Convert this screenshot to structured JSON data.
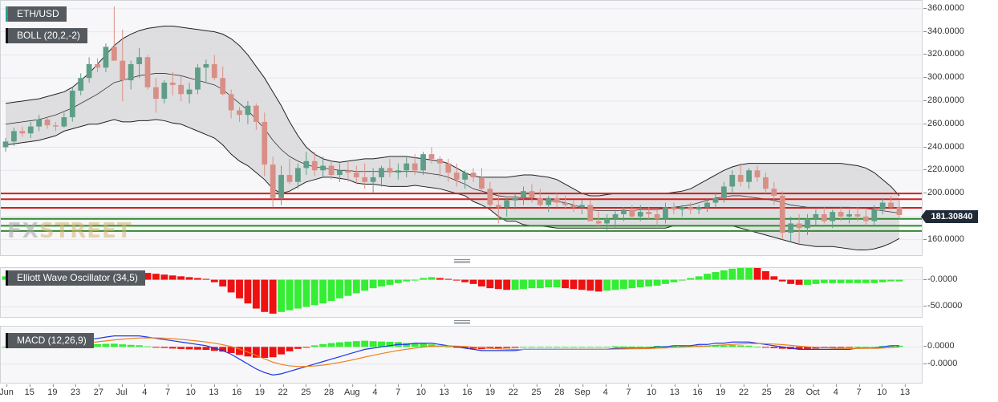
{
  "symbol": "ETH/USD",
  "indicators": {
    "boll": "BOLL (20,2,-2)",
    "ewo": "Elliott Wave Oscillator (34,5)",
    "macd": "MACD (12,26,9)"
  },
  "current_price": "181.30840",
  "watermark": {
    "fx": "FX",
    "street": "STREET"
  },
  "price_axis_labels": [
    "360.0000",
    "340.0000",
    "320.0000",
    "300.0000",
    "280.0000",
    "260.0000",
    "240.0000",
    "220.0000",
    "200.0000",
    "180.0000",
    "160.0000"
  ],
  "ewo_axis_labels": [
    "-0.0000",
    "-50.0000"
  ],
  "macd_axis_labels": [
    "0.0000",
    "-0.0000"
  ],
  "x_axis_labels": [
    "Jun",
    "15",
    "19",
    "23",
    "27",
    "Jul",
    "4",
    "7",
    "10",
    "13",
    "16",
    "19",
    "22",
    "25",
    "28",
    "Aug",
    "4",
    "7",
    "10",
    "13",
    "16",
    "19",
    "22",
    "25",
    "28",
    "Sep",
    "4",
    "7",
    "10",
    "13",
    "16",
    "19",
    "22",
    "25",
    "28",
    "Oct",
    "4",
    "7",
    "10",
    "13"
  ],
  "colors": {
    "bull": "#5e9e86",
    "bear": "#d98f86",
    "band_fill": "#d9d9dc",
    "support_line": "#2f8a2f",
    "resistance_line": "#d21f1f",
    "ewo_up": "#33ee33",
    "ewo_down": "#ee1111",
    "macd_line": "#1c36e8",
    "signal_line": "#f07f1a"
  },
  "chart_data": {
    "type": "candlestick",
    "ylim": [
      150,
      362
    ],
    "resistance_levels": [
      200,
      195,
      187.5
    ],
    "support_levels": [
      178,
      172,
      167.5
    ],
    "candles": [
      [
        240,
        248,
        236,
        245
      ],
      [
        245,
        257,
        241,
        254
      ],
      [
        254,
        258,
        249,
        252
      ],
      [
        252,
        262,
        248,
        258
      ],
      [
        258,
        268,
        254,
        264
      ],
      [
        264,
        266,
        256,
        259
      ],
      [
        259,
        262,
        254,
        258
      ],
      [
        258,
        270,
        257,
        266
      ],
      [
        266,
        292,
        262,
        289
      ],
      [
        289,
        304,
        285,
        300
      ],
      [
        300,
        318,
        296,
        312
      ],
      [
        312,
        317,
        305,
        309
      ],
      [
        309,
        330,
        305,
        327
      ],
      [
        327,
        362,
        315,
        315
      ],
      [
        315,
        342,
        280,
        298
      ],
      [
        298,
        315,
        290,
        312
      ],
      [
        312,
        326,
        300,
        318
      ],
      [
        318,
        320,
        290,
        292
      ],
      [
        292,
        300,
        270,
        282
      ],
      [
        282,
        298,
        278,
        296
      ],
      [
        296,
        305,
        285,
        294
      ],
      [
        294,
        302,
        280,
        286
      ],
      [
        286,
        296,
        278,
        290
      ],
      [
        290,
        312,
        286,
        309
      ],
      [
        309,
        316,
        296,
        312
      ],
      [
        312,
        320,
        298,
        300
      ],
      [
        300,
        310,
        285,
        286
      ],
      [
        286,
        290,
        265,
        272
      ],
      [
        272,
        275,
        262,
        268
      ],
      [
        268,
        280,
        260,
        276
      ],
      [
        276,
        278,
        255,
        262
      ],
      [
        262,
        270,
        215,
        225
      ],
      [
        225,
        232,
        188,
        196
      ],
      [
        196,
        224,
        190,
        216
      ],
      [
        216,
        230,
        208,
        210
      ],
      [
        210,
        226,
        204,
        222
      ],
      [
        222,
        236,
        216,
        228
      ],
      [
        228,
        236,
        215,
        220
      ],
      [
        220,
        232,
        214,
        224
      ],
      [
        224,
        228,
        212,
        216
      ],
      [
        216,
        226,
        210,
        220
      ],
      [
        220,
        228,
        210,
        218
      ],
      [
        218,
        224,
        208,
        214
      ],
      [
        214,
        226,
        204,
        210
      ],
      [
        210,
        222,
        200,
        214
      ],
      [
        214,
        224,
        206,
        222
      ],
      [
        222,
        230,
        214,
        218
      ],
      [
        218,
        226,
        212,
        220
      ],
      [
        220,
        232,
        214,
        226
      ],
      [
        226,
        234,
        216,
        220
      ],
      [
        220,
        236,
        216,
        234
      ],
      [
        234,
        240,
        226,
        230
      ],
      [
        230,
        232,
        214,
        226
      ],
      [
        226,
        230,
        210,
        218
      ],
      [
        218,
        226,
        206,
        212
      ],
      [
        212,
        220,
        204,
        218
      ],
      [
        218,
        222,
        210,
        214
      ],
      [
        214,
        222,
        200,
        204
      ],
      [
        204,
        210,
        188,
        190
      ],
      [
        190,
        200,
        174,
        188
      ],
      [
        188,
        196,
        180,
        194
      ],
      [
        194,
        200,
        186,
        196
      ],
      [
        196,
        206,
        190,
        202
      ],
      [
        202,
        208,
        192,
        196
      ],
      [
        196,
        204,
        188,
        190
      ],
      [
        190,
        198,
        184,
        196
      ],
      [
        196,
        200,
        188,
        192
      ],
      [
        192,
        198,
        186,
        190
      ],
      [
        190,
        194,
        184,
        188
      ],
      [
        188,
        194,
        182,
        190
      ],
      [
        190,
        194,
        176,
        176
      ],
      [
        176,
        184,
        170,
        174
      ],
      [
        174,
        182,
        168,
        178
      ],
      [
        178,
        186,
        170,
        182
      ],
      [
        182,
        188,
        176,
        186
      ],
      [
        186,
        190,
        178,
        180
      ],
      [
        180,
        190,
        176,
        184
      ],
      [
        184,
        188,
        178,
        182
      ],
      [
        182,
        186,
        172,
        178
      ],
      [
        178,
        192,
        174,
        188
      ],
      [
        188,
        192,
        182,
        186
      ],
      [
        186,
        190,
        180,
        188
      ],
      [
        188,
        192,
        182,
        186
      ],
      [
        186,
        190,
        182,
        188
      ],
      [
        188,
        196,
        184,
        192
      ],
      [
        192,
        200,
        188,
        196
      ],
      [
        196,
        210,
        192,
        206
      ],
      [
        206,
        220,
        200,
        216
      ],
      [
        216,
        226,
        206,
        210
      ],
      [
        210,
        222,
        204,
        220
      ],
      [
        220,
        224,
        210,
        214
      ],
      [
        214,
        218,
        200,
        204
      ],
      [
        204,
        210,
        190,
        198
      ],
      [
        198,
        202,
        160,
        166
      ],
      [
        166,
        180,
        158,
        174
      ],
      [
        174,
        182,
        156,
        170
      ],
      [
        170,
        182,
        164,
        178
      ],
      [
        178,
        186,
        172,
        182
      ],
      [
        182,
        188,
        174,
        176
      ],
      [
        176,
        186,
        170,
        184
      ],
      [
        184,
        188,
        176,
        180
      ],
      [
        180,
        186,
        174,
        182
      ],
      [
        182,
        188,
        176,
        180
      ],
      [
        180,
        186,
        172,
        176
      ],
      [
        176,
        190,
        172,
        186
      ],
      [
        186,
        196,
        182,
        192
      ],
      [
        192,
        198,
        186,
        188
      ],
      [
        188,
        194,
        178,
        181.3
      ]
    ],
    "boll_upper": [
      278,
      279,
      280,
      281,
      282,
      284,
      286,
      288,
      292,
      298,
      304,
      312,
      320,
      328,
      334,
      338,
      341,
      343,
      344,
      345,
      345,
      344,
      343,
      342,
      341,
      340,
      338,
      334,
      328,
      320,
      310,
      300,
      288,
      276,
      262,
      250,
      240,
      234,
      230,
      228,
      227,
      228,
      229,
      230,
      230,
      231,
      232,
      232,
      232,
      231,
      230,
      229,
      228,
      226,
      222,
      218,
      215,
      214,
      214,
      214,
      214,
      215,
      216,
      216,
      215,
      214,
      212,
      208,
      204,
      200,
      198,
      198,
      199,
      200,
      200,
      200,
      200,
      200,
      200,
      200,
      201,
      202,
      204,
      208,
      212,
      216,
      220,
      223,
      225,
      226,
      226,
      226,
      226,
      226,
      226,
      226,
      226,
      226,
      226,
      226,
      226,
      225,
      224,
      222,
      218,
      212,
      206,
      198
    ],
    "boll_mid": [
      260,
      261,
      262,
      263,
      264,
      266,
      268,
      271,
      274,
      278,
      282,
      286,
      291,
      296,
      298,
      300,
      302,
      303,
      304,
      304,
      303,
      302,
      300,
      298,
      296,
      294,
      290,
      284,
      278,
      272,
      264,
      256,
      246,
      238,
      232,
      228,
      225,
      223,
      222,
      221,
      220,
      220,
      219,
      219,
      219,
      219,
      219,
      219,
      219,
      219,
      218,
      217,
      216,
      214,
      211,
      208,
      204,
      202,
      200,
      198,
      197,
      197,
      196,
      196,
      195,
      194,
      193,
      192,
      190,
      188,
      186,
      185,
      185,
      185,
      185,
      185,
      186,
      186,
      186,
      187,
      188,
      189,
      190,
      192,
      194,
      196,
      197,
      198,
      198,
      197,
      196,
      195,
      194,
      192,
      190,
      189,
      188,
      188,
      188,
      188,
      188,
      188,
      187,
      187,
      186,
      185,
      184,
      183
    ],
    "boll_lower": [
      242,
      243,
      244,
      245,
      246,
      248,
      250,
      254,
      256,
      258,
      260,
      260,
      262,
      264,
      262,
      262,
      263,
      263,
      264,
      263,
      261,
      260,
      257,
      254,
      251,
      248,
      242,
      234,
      228,
      224,
      218,
      212,
      204,
      200,
      202,
      206,
      210,
      212,
      214,
      214,
      213,
      212,
      209,
      208,
      208,
      207,
      206,
      206,
      206,
      207,
      206,
      205,
      204,
      202,
      200,
      198,
      193,
      190,
      186,
      180,
      176,
      176,
      173,
      172,
      172,
      171,
      170,
      170,
      170,
      170,
      170,
      170,
      170,
      170,
      170,
      170,
      170,
      170,
      170,
      170,
      172,
      172,
      172,
      172,
      172,
      172,
      172,
      172,
      170,
      168,
      166,
      164,
      162,
      160,
      158,
      156,
      155,
      154,
      154,
      154,
      153,
      152,
      151,
      151,
      152,
      154,
      157,
      161
    ],
    "ewo_values": [
      4,
      4,
      3,
      3,
      3,
      3,
      4,
      4,
      4,
      5,
      5,
      6,
      7,
      8,
      9,
      9,
      9,
      8,
      7,
      6,
      5,
      4,
      3,
      2,
      1,
      -3,
      -8,
      -15,
      -22,
      -28,
      -34,
      -38,
      -40,
      -38,
      -36,
      -34,
      -32,
      -30,
      -28,
      -25,
      -22,
      -19,
      -16,
      -13,
      -10,
      -8,
      -6,
      -4,
      -2,
      -1,
      2,
      3,
      2,
      1,
      -1,
      -3,
      -5,
      -8,
      -10,
      -11,
      -12,
      -12,
      -11,
      -10,
      -10,
      -9,
      -9,
      -10,
      -11,
      -12,
      -13,
      -14,
      -13,
      -12,
      -11,
      -10,
      -9,
      -8,
      -7,
      -5,
      -3,
      -1,
      2,
      4,
      7,
      9,
      11,
      13,
      14,
      15,
      14,
      10,
      4,
      -2,
      -5,
      -6,
      -6,
      -5,
      -4,
      -4,
      -4,
      -4,
      -4,
      -4,
      -4,
      -3,
      -2,
      -2
    ],
    "macd_values": [
      1,
      1,
      1,
      1,
      2,
      2,
      2,
      3,
      4,
      5,
      6,
      7,
      8,
      9,
      9,
      9,
      9,
      8,
      7,
      6,
      5,
      4,
      3,
      2,
      1,
      -1,
      -3,
      -6,
      -10,
      -14,
      -18,
      -21,
      -23,
      -22,
      -20,
      -18,
      -16,
      -14,
      -12,
      -10,
      -8,
      -6,
      -4,
      -2,
      -1,
      0,
      1,
      2,
      2,
      3,
      3,
      3,
      2,
      1,
      0,
      -1,
      -2,
      -3,
      -3,
      -3,
      -3,
      -3,
      -2,
      -2,
      -2,
      -2,
      -2,
      -2,
      -2,
      -2,
      -2,
      -2,
      -2,
      -1,
      -1,
      -1,
      -1,
      -1,
      0,
      0,
      1,
      1,
      1,
      2,
      2,
      3,
      3,
      4,
      4,
      4,
      3,
      2,
      1,
      0,
      -1,
      -2,
      -2,
      -2,
      -2,
      -2,
      -2,
      -2,
      -1,
      -1,
      -1,
      0,
      1,
      1
    ]
  }
}
